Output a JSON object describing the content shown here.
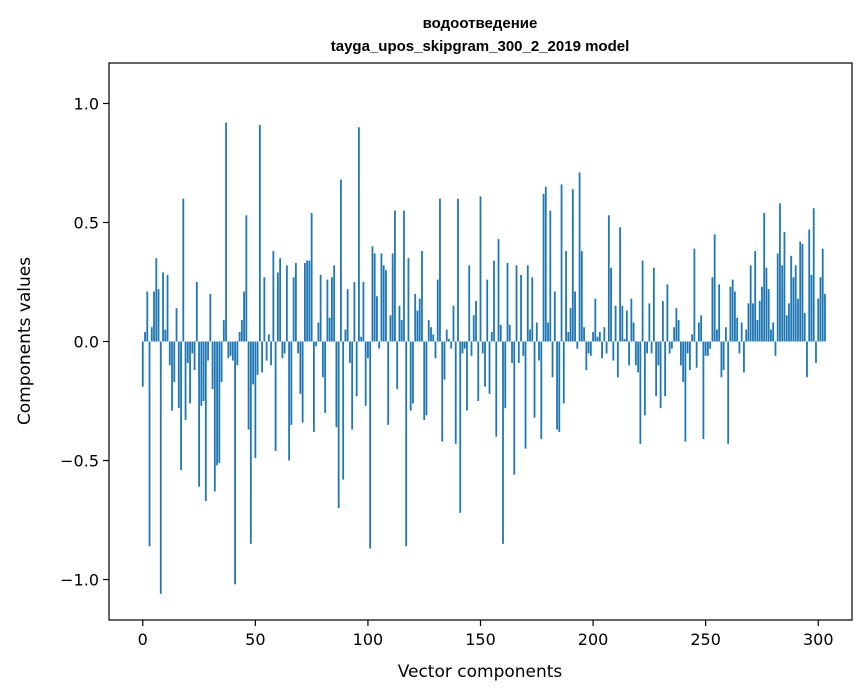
{
  "chart_data": {
    "type": "bar",
    "title_line1": "водоотведение",
    "title_line2": "tayga_upos_skipgram_300_2_2019 model",
    "xlabel": "Vector components",
    "ylabel": "Components values",
    "xlim": [
      -15,
      315
    ],
    "ylim": [
      -1.17,
      1.17
    ],
    "xticks": [
      0,
      50,
      100,
      150,
      200,
      250,
      300
    ],
    "xtick_labels": [
      "0",
      "50",
      "100",
      "150",
      "200",
      "250",
      "300"
    ],
    "yticks": [
      -1.0,
      -0.5,
      0.0,
      0.5,
      1.0
    ],
    "ytick_labels": [
      "−1.0",
      "−0.5",
      "0.0",
      "0.5",
      "1.0"
    ],
    "bar_color": "#1f77b4",
    "values": [
      -0.19,
      0.04,
      0.21,
      -0.86,
      0.06,
      0.21,
      0.35,
      0.22,
      -1.06,
      0.29,
      0.05,
      0.28,
      -0.1,
      -0.29,
      -0.17,
      0.14,
      -0.28,
      -0.54,
      0.6,
      -0.33,
      -0.09,
      -0.26,
      -0.05,
      -0.12,
      0.25,
      -0.61,
      -0.27,
      -0.25,
      -0.67,
      -0.08,
      0.2,
      -0.2,
      -0.63,
      -0.52,
      -0.51,
      -0.17,
      0.09,
      0.92,
      -0.07,
      -0.06,
      -0.08,
      -1.02,
      -0.1,
      0.04,
      0.09,
      0.21,
      0.53,
      -0.37,
      -0.85,
      -0.18,
      -0.49,
      -0.14,
      0.91,
      -0.13,
      0.27,
      -0.08,
      0.03,
      -0.1,
      0.38,
      -0.46,
      0.29,
      0.35,
      -0.07,
      -0.05,
      0.32,
      -0.5,
      -0.35,
      0.27,
      0.33,
      -0.05,
      -0.22,
      -0.34,
      0.33,
      0.34,
      0.34,
      0.54,
      -0.38,
      -0.02,
      0.08,
      0.28,
      -0.15,
      -0.3,
      0.26,
      0.1,
      0.27,
      0.32,
      -0.36,
      -0.7,
      0.68,
      -0.58,
      0.05,
      0.22,
      -0.09,
      -0.37,
      0.25,
      -0.23,
      0.9,
      0.02,
      0.25,
      -0.27,
      -0.07,
      -0.87,
      0.4,
      0.37,
      0.19,
      -0.03,
      0.37,
      0.32,
      0.3,
      -0.35,
      0.11,
      0.37,
      0.55,
      -0.2,
      0.15,
      0.09,
      0.55,
      -0.86,
      0.35,
      -0.29,
      -0.26,
      0.2,
      0.13,
      0.18,
      0.38,
      -0.33,
      -0.31,
      0.09,
      0.06,
      0.03,
      -0.07,
      0.26,
      0.6,
      -0.42,
      -0.16,
      0.05,
      0.01,
      -0.03,
      0.15,
      -0.43,
      0.6,
      -0.72,
      -0.05,
      -0.03,
      -0.29,
      0.32,
      -0.06,
      0.11,
      0.17,
      -0.25,
      0.61,
      -0.05,
      -0.19,
      0.26,
      -0.22,
      0.04,
      0.34,
      -0.4,
      0.43,
      0.07,
      -0.85,
      -0.28,
      0.33,
      0.07,
      -0.09,
      -0.56,
      0.32,
      -0.09,
      0.28,
      -0.06,
      -0.45,
      0.32,
      0.05,
      0.27,
      -0.32,
      0.08,
      -0.08,
      -0.41,
      0.62,
      0.65,
      0.08,
      0.55,
      -0.15,
      0.21,
      -0.37,
      -0.38,
      0.66,
      -0.26,
      0.38,
      0.04,
      0.14,
      0.64,
      0.21,
      -0.03,
      0.71,
      0.38,
      0.06,
      -0.12,
      -0.05,
      -0.06,
      0.04,
      0.18,
      0.02,
      0.04,
      -0.07,
      0.06,
      -0.05,
      0.53,
      0.31,
      -0.08,
      0.15,
      -0.15,
      0.48,
      0.15,
      0.01,
      0.13,
      -0.1,
      0.18,
      0.08,
      -0.1,
      -0.13,
      -0.43,
      0.34,
      -0.31,
      -0.05,
      0.16,
      -0.05,
      0.31,
      -0.23,
      -0.1,
      -0.28,
      0.17,
      -0.23,
      0.24,
      -0.05,
      -0.03,
      0.06,
      0.14,
      0.09,
      -0.1,
      -0.17,
      -0.42,
      -0.05,
      -0.12,
      0.03,
      0.39,
      -0.11,
      0.08,
      0.11,
      -0.41,
      -0.06,
      -0.06,
      -0.03,
      0.27,
      0.45,
      0.05,
      0.24,
      -0.15,
      -0.12,
      0.06,
      -0.43,
      0.23,
      0.26,
      0.21,
      0.1,
      -0.05,
      0.08,
      -0.13,
      0.05,
      0.16,
      0.32,
      0.16,
      0.38,
      0.09,
      0.17,
      0.23,
      0.54,
      0.31,
      0.22,
      0.05,
      0.08,
      -0.06,
      0.37,
      0.58,
      0.32,
      0.46,
      0.11,
      0.16,
      0.36,
      0.27,
      0.32,
      0.18,
      0.42,
      0.41,
      0.12,
      -0.15,
      0.47,
      0.28,
      0.56,
      -0.09,
      0.18,
      0.27,
      0.39,
      0.2
    ]
  }
}
